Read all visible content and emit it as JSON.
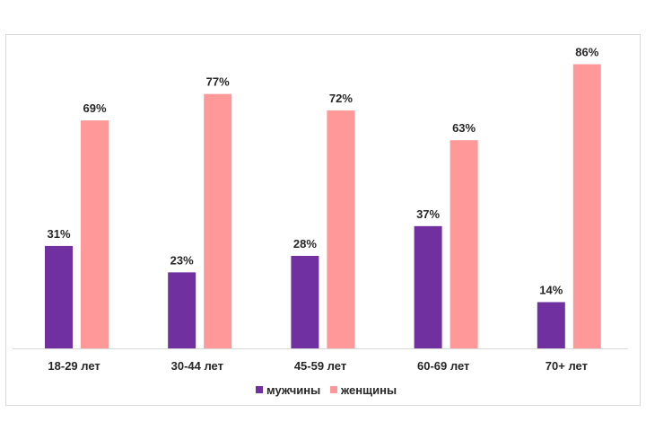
{
  "chart_data": {
    "type": "bar",
    "categories": [
      "18-29 лет",
      "30-44 лет",
      "45-59 лет",
      "60-69 лет",
      "70+ лет"
    ],
    "series": [
      {
        "name": "мужчины",
        "color": "#7030a0",
        "values": [
          31,
          23,
          28,
          37,
          14
        ],
        "labels": [
          "31%",
          "23%",
          "28%",
          "37%",
          "14%"
        ]
      },
      {
        "name": "женщины",
        "color": "#ff9999",
        "values": [
          69,
          77,
          72,
          63,
          86
        ],
        "labels": [
          "69%",
          "77%",
          "72%",
          "63%",
          "86%"
        ]
      }
    ],
    "ylim": [
      0,
      100
    ],
    "grid": false,
    "legend": "bottom-center"
  }
}
